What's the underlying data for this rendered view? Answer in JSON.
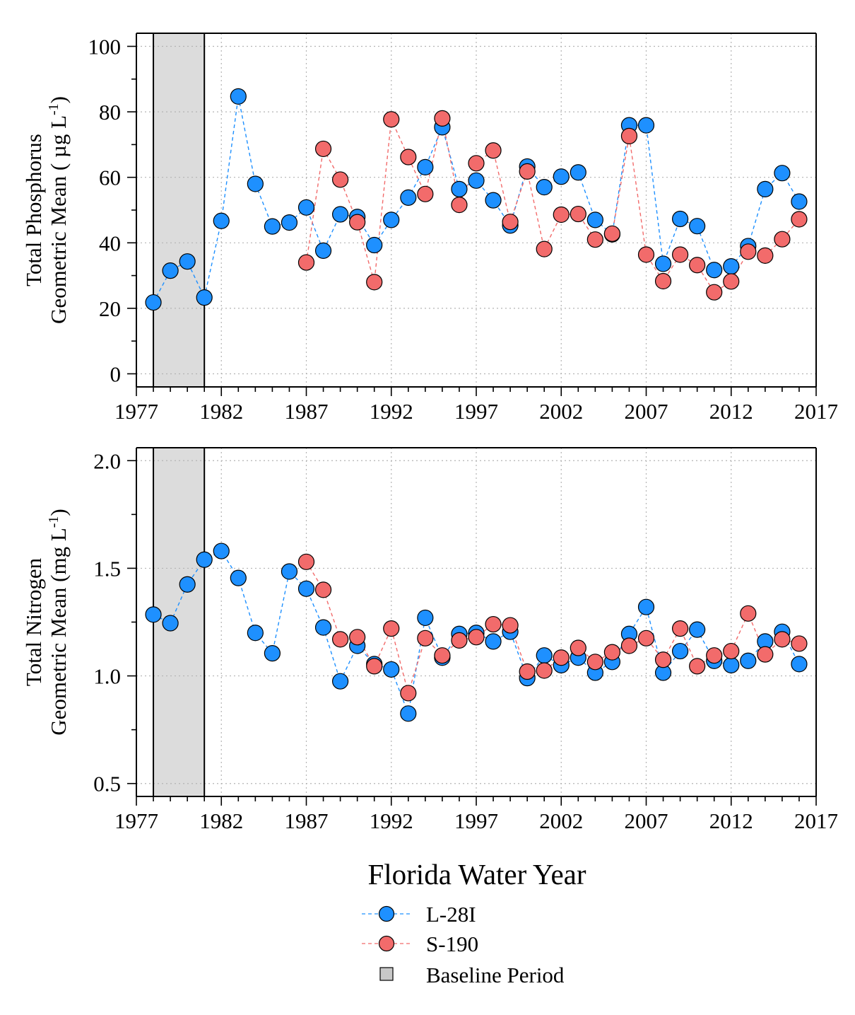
{
  "xlabel": "Florida Water Year",
  "legend": {
    "position": "bottom",
    "items": [
      {
        "label": "L-28I",
        "kind": "line-marker",
        "color": "#1E90FF",
        "line_color": "#1E90FF"
      },
      {
        "label": "S-190",
        "kind": "line-marker",
        "color": "#F26B6B",
        "line_color": "#F26B6B"
      },
      {
        "label": "Baseline Period",
        "kind": "box",
        "color": "#C8C8C8"
      }
    ]
  },
  "baseline_period": {
    "start": 1978,
    "end": 1981,
    "label": "Baseline Period"
  },
  "chart_data": [
    {
      "type": "line",
      "ylabel_line1": "Total Phosphorus",
      "ylabel_line2": "Geometric Mean ( µg L",
      "ylabel_sup": "-1",
      "ylabel_close": ")",
      "xlim": [
        1977,
        2017
      ],
      "ylim": [
        -4,
        104
      ],
      "xticks": [
        1977,
        1982,
        1987,
        1992,
        1997,
        2002,
        2007,
        2012,
        2017
      ],
      "yticks": [
        0,
        20,
        40,
        60,
        80,
        100
      ],
      "ytick_labels": [
        "0",
        "20",
        "40",
        "60",
        "80",
        "100"
      ],
      "grid": true,
      "series": [
        {
          "name": "L-28I",
          "color": "#1E90FF",
          "x": [
            1978,
            1979,
            1980,
            1981,
            1982,
            1983,
            1984,
            1985,
            1986,
            1987,
            1988,
            1989,
            1990,
            1991,
            1992,
            1993,
            1994,
            1995,
            1996,
            1997,
            1998,
            1999,
            2000,
            2001,
            2002,
            2003,
            2004,
            2005,
            2006,
            2007,
            2008,
            2009,
            2010,
            2011,
            2012,
            2013,
            2014,
            2015,
            2016
          ],
          "y": [
            21.8,
            31.5,
            34.3,
            23.3,
            46.7,
            84.7,
            58.0,
            45.0,
            46.2,
            50.8,
            37.6,
            48.7,
            47.9,
            39.3,
            47.0,
            53.8,
            63.1,
            75.3,
            56.4,
            59.0,
            53.0,
            45.3,
            63.3,
            57.0,
            60.2,
            61.5,
            47.0,
            42.6,
            75.9,
            75.9,
            33.6,
            47.3,
            45.1,
            31.7,
            32.8,
            39.0,
            56.4,
            61.3,
            52.6
          ]
        },
        {
          "name": "S-190",
          "color": "#F26B6B",
          "x": [
            1987,
            1988,
            1989,
            1990,
            1991,
            1992,
            1993,
            1994,
            1995,
            1996,
            1997,
            1998,
            1999,
            2000,
            2001,
            2002,
            2003,
            2004,
            2005,
            2006,
            2007,
            2008,
            2009,
            2010,
            2011,
            2012,
            2013,
            2014,
            2015,
            2016
          ],
          "y": [
            34.0,
            68.7,
            59.3,
            46.3,
            28.0,
            77.7,
            66.2,
            54.9,
            78.0,
            51.6,
            64.3,
            68.2,
            46.4,
            61.8,
            38.1,
            48.6,
            48.8,
            41.0,
            42.8,
            72.6,
            36.4,
            28.3,
            36.4,
            33.2,
            24.9,
            28.2,
            37.3,
            36.1,
            41.1,
            47.2
          ]
        }
      ]
    },
    {
      "type": "line",
      "ylabel_line1": "Total Nitrogen",
      "ylabel_line2": "Geometric Mean (mg L",
      "ylabel_sup": "-1",
      "ylabel_close": ")",
      "xlim": [
        1977,
        2017
      ],
      "ylim": [
        0.44,
        2.06
      ],
      "xticks": [
        1977,
        1982,
        1987,
        1992,
        1997,
        2002,
        2007,
        2012,
        2017
      ],
      "yticks": [
        0.5,
        1.0,
        1.5,
        2.0
      ],
      "ytick_labels": [
        "0.5",
        "1.0",
        "1.5",
        "2.0"
      ],
      "grid": true,
      "series": [
        {
          "name": "L-28I",
          "color": "#1E90FF",
          "x": [
            1978,
            1979,
            1980,
            1981,
            1982,
            1983,
            1984,
            1985,
            1986,
            1987,
            1988,
            1989,
            1990,
            1991,
            1992,
            1993,
            1994,
            1995,
            1996,
            1997,
            1998,
            1999,
            2000,
            2001,
            2002,
            2003,
            2004,
            2005,
            2006,
            2007,
            2008,
            2009,
            2010,
            2011,
            2012,
            2013,
            2014,
            2015,
            2016
          ],
          "y": [
            1.285,
            1.245,
            1.425,
            1.54,
            1.58,
            1.455,
            1.2,
            1.105,
            1.485,
            1.405,
            1.225,
            0.975,
            1.14,
            1.055,
            1.03,
            0.825,
            1.27,
            1.085,
            1.195,
            1.2,
            1.16,
            1.205,
            0.99,
            1.095,
            1.05,
            1.085,
            1.015,
            1.065,
            1.195,
            1.32,
            1.015,
            1.115,
            1.215,
            1.07,
            1.05,
            1.07,
            1.16,
            1.205,
            1.055
          ]
        },
        {
          "name": "S-190",
          "color": "#F26B6B",
          "x": [
            1987,
            1988,
            1989,
            1990,
            1991,
            1992,
            1993,
            1994,
            1995,
            1996,
            1997,
            1998,
            1999,
            2000,
            2001,
            2002,
            2003,
            2004,
            2005,
            2006,
            2007,
            2008,
            2009,
            2010,
            2011,
            2012,
            2013,
            2014,
            2015,
            2016
          ],
          "y": [
            1.53,
            1.4,
            1.17,
            1.18,
            1.045,
            1.22,
            0.92,
            1.175,
            1.095,
            1.165,
            1.18,
            1.24,
            1.235,
            1.02,
            1.025,
            1.085,
            1.13,
            1.065,
            1.11,
            1.14,
            1.175,
            1.075,
            1.22,
            1.045,
            1.095,
            1.115,
            1.29,
            1.1,
            1.17,
            1.15
          ]
        }
      ]
    }
  ]
}
